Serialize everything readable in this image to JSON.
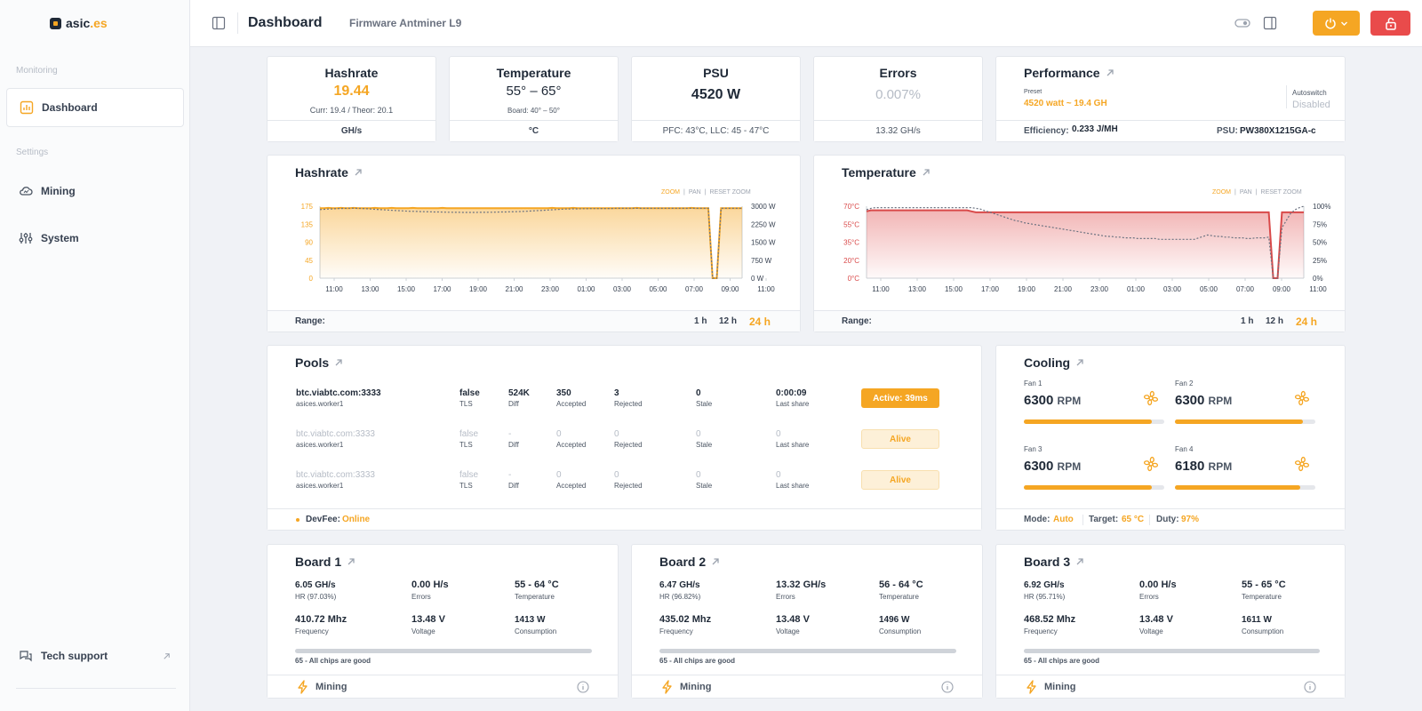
{
  "app": {
    "brand_a": "asic",
    "brand_b": ".es"
  },
  "sidebar": {
    "section_monitoring": "Monitoring",
    "section_settings": "Settings",
    "items": [
      {
        "label": "Dashboard",
        "icon": "chart-icon"
      },
      {
        "label": "Mining",
        "icon": "cloud-icon"
      },
      {
        "label": "System",
        "icon": "sliders-icon"
      }
    ],
    "support": "Tech support"
  },
  "header": {
    "title": "Dashboard",
    "firmware": "Firmware Antminer L9"
  },
  "stats": {
    "hashrate": {
      "title": "Hashrate",
      "value": "19.44",
      "sub": "Curr: 19.4 / Theor: 20.1",
      "unit": "GH/s"
    },
    "temperature": {
      "title": "Temperature",
      "value": "55° – 65°",
      "sub": "Board: 40° – 50°",
      "unit": "°C"
    },
    "psu": {
      "title": "PSU",
      "value": "4520 W",
      "foot": "PFC: 43°C, LLC: 45 - 47°C"
    },
    "errors": {
      "title": "Errors",
      "value": "0.007%",
      "foot": "13.32 GH/s"
    },
    "performance": {
      "title": "Performance",
      "preset_label": "Preset",
      "preset": "4520 watt ~ 19.4 GH",
      "autoswitch_label": "Autoswitch",
      "autoswitch": "Disabled",
      "eff_label": "Efficiency:",
      "eff": "0.233 J/MH",
      "psu_label": "PSU:",
      "psu": "PW380X1215GA-c"
    }
  },
  "chart_controls": {
    "zoom": "ZOOM",
    "pan": "PAN",
    "reset": "RESET ZOOM",
    "range": "Range:",
    "r1": "1 h",
    "r12": "12 h",
    "r24": "24 h"
  },
  "chart_data": [
    {
      "type": "line",
      "title": "Hashrate",
      "x_ticks": [
        "11:00",
        "13:00",
        "15:00",
        "17:00",
        "19:00",
        "21:00",
        "23:00",
        "01:00",
        "03:00",
        "05:00",
        "07:00",
        "09:00",
        "11:00"
      ],
      "y_ticks": [
        "175",
        "135",
        "90",
        "45",
        "0"
      ],
      "y2_ticks": [
        "3000 W",
        "2250 W",
        "1500 W",
        "750 W",
        "0 W"
      ],
      "ylim": [
        0,
        175
      ],
      "y2lim": [
        0,
        3000
      ],
      "series": [
        {
          "axis": "left",
          "color": "#f5a623",
          "values": [
            170,
            170,
            171,
            170,
            170,
            171,
            170,
            170,
            171,
            170,
            170,
            170,
            170,
            171,
            170,
            170,
            170,
            171,
            170,
            170,
            170,
            170,
            171,
            170,
            170,
            170,
            170,
            170,
            170,
            171,
            170,
            170,
            170,
            170,
            170,
            170,
            170,
            170,
            170,
            170,
            170,
            170,
            170,
            170,
            170,
            170,
            170,
            170,
            170,
            170,
            170,
            170,
            170,
            170,
            170,
            171,
            170,
            170,
            170,
            170,
            171,
            170,
            170,
            170,
            170,
            170,
            170,
            170,
            170,
            170,
            170,
            170,
            170,
            170,
            170,
            171,
            170,
            170,
            170,
            170,
            170,
            170,
            170,
            170,
            170,
            170,
            170,
            170,
            171,
            170,
            170,
            170,
            170,
            0,
            0,
            170,
            170,
            170,
            170,
            170,
            170
          ]
        },
        {
          "axis": "right",
          "color": "#6b7280",
          "values": [
            2860,
            2870,
            2880,
            2890,
            2900,
            2905,
            2910,
            2915,
            2915,
            2910,
            2905,
            2895,
            2885,
            2870,
            2860,
            2850,
            2840,
            2830,
            2820,
            2810,
            2800,
            2790,
            2785,
            2780,
            2775,
            2770,
            2765,
            2760,
            2760,
            2755,
            2750,
            2750,
            2745,
            2745,
            2740,
            2740,
            2740,
            2740,
            2745,
            2745,
            2750,
            2750,
            2755,
            2760,
            2760,
            2765,
            2770,
            2775,
            2780,
            2790,
            2800,
            2810,
            2820,
            2830,
            2840,
            2850,
            2860,
            2870,
            2880,
            2885,
            2890,
            2890,
            2895,
            2895,
            2900,
            2900,
            2900,
            2905,
            2905,
            2905,
            2910,
            2910,
            2910,
            2910,
            2910,
            2910,
            2910,
            2910,
            2910,
            2910,
            2910,
            2910,
            2910,
            2910,
            2910,
            2910,
            2910,
            2910,
            2910,
            2910,
            2910,
            2910,
            2910,
            0,
            0,
            2910,
            2910,
            2910,
            2910,
            2910,
            2910
          ]
        }
      ]
    },
    {
      "type": "line",
      "title": "Temperature",
      "x_ticks": [
        "11:00",
        "13:00",
        "15:00",
        "17:00",
        "19:00",
        "21:00",
        "23:00",
        "01:00",
        "03:00",
        "05:00",
        "07:00",
        "09:00",
        "11:00"
      ],
      "y_ticks": [
        "70°C",
        "55°C",
        "35°C",
        "20°C",
        "0°C"
      ],
      "y2_ticks": [
        "100%",
        "75%",
        "50%",
        "25%",
        "0%"
      ],
      "ylim": [
        0,
        70
      ],
      "y2lim": [
        0,
        100
      ],
      "series": [
        {
          "axis": "left",
          "color": "#d94a4a",
          "values": [
            65,
            66,
            66,
            66,
            66,
            66,
            66,
            66,
            66,
            66,
            66,
            66,
            66,
            66,
            66,
            66,
            66,
            66,
            66,
            66,
            66,
            66,
            66,
            66,
            65,
            64,
            64,
            64,
            64,
            64,
            64,
            64,
            64,
            64,
            64,
            64,
            64,
            64,
            64,
            64,
            64,
            64,
            64,
            64,
            64,
            64,
            64,
            64,
            64,
            64,
            64,
            64,
            64,
            64,
            64,
            64,
            64,
            64,
            64,
            64,
            64,
            64,
            64,
            64,
            64,
            64,
            64,
            64,
            64,
            64,
            64,
            64,
            64,
            64,
            64,
            64,
            64,
            64,
            64,
            64,
            64,
            64,
            64,
            64,
            64,
            64,
            64,
            64,
            64,
            64,
            64,
            64,
            64,
            0,
            0,
            64,
            64,
            64,
            64,
            64,
            64
          ]
        },
        {
          "axis": "right",
          "color": "#6b7280",
          "values": [
            95,
            97,
            98,
            98,
            98,
            98,
            98,
            98,
            98,
            98,
            98,
            98,
            98,
            98,
            98,
            98,
            98,
            98,
            98,
            98,
            98,
            98,
            98,
            98,
            98,
            97,
            96,
            94,
            92,
            90,
            88,
            86,
            84,
            82,
            80,
            79,
            77,
            76,
            75,
            74,
            73,
            72,
            71,
            70,
            69,
            68,
            67,
            66,
            65,
            64,
            63,
            62,
            61,
            60,
            59,
            58,
            58,
            57,
            57,
            56,
            56,
            56,
            55,
            55,
            55,
            55,
            55,
            54,
            54,
            54,
            54,
            54,
            54,
            54,
            54,
            54,
            56,
            58,
            60,
            59,
            58,
            58,
            57,
            57,
            56,
            56,
            56,
            55,
            55,
            56,
            56,
            56,
            57,
            0,
            0,
            70,
            80,
            90,
            95,
            98,
            100
          ]
        }
      ]
    }
  ],
  "pools": {
    "title": "Pools",
    "labels": {
      "tls": "TLS",
      "diff": "Diff",
      "accepted": "Accepted",
      "rejected": "Rejected",
      "stale": "Stale",
      "last": "Last share"
    },
    "rows": [
      {
        "url": "btc.viabtc.com:3333",
        "worker": "asices.worker1",
        "tls": "false",
        "diff": "524K",
        "accepted": "350",
        "rejected": "3",
        "stale": "0",
        "last": "0:00:09",
        "status": "Active: 39ms"
      },
      {
        "url": "btc.viabtc.com:3333",
        "worker": "asices.worker1",
        "tls": "false",
        "diff": "-",
        "accepted": "0",
        "rejected": "0",
        "stale": "0",
        "last": "0",
        "status": "Alive"
      },
      {
        "url": "btc.viabtc.com:3333",
        "worker": "asices.worker1",
        "tls": "false",
        "diff": "-",
        "accepted": "0",
        "rejected": "0",
        "stale": "0",
        "last": "0",
        "status": "Alive"
      }
    ],
    "devfee_label": "DevFee:",
    "devfee": "Online"
  },
  "cooling": {
    "title": "Cooling",
    "unit": "RPM",
    "fans": [
      {
        "label": "Fan 1",
        "rpm": "6300",
        "fill": 0.91
      },
      {
        "label": "Fan 2",
        "rpm": "6300",
        "fill": 0.91
      },
      {
        "label": "Fan 3",
        "rpm": "6300",
        "fill": 0.91
      },
      {
        "label": "Fan 4",
        "rpm": "6180",
        "fill": 0.89
      }
    ],
    "mode_label": "Mode:",
    "mode": "Auto",
    "target_label": "Target:",
    "target": "65 °C",
    "duty_label": "Duty:",
    "duty": "97%"
  },
  "board_labels": {
    "freq": "Frequency",
    "volt": "Voltage",
    "cons": "Consumption",
    "err": "Errors",
    "temp": "Temperature",
    "state": "Mining"
  },
  "boards": [
    {
      "title": "Board 1",
      "hr": "6.05 GH/s",
      "hr_label": "HR (97.03%)",
      "errors": "0.00 H/s",
      "temp": "55 - 64 °C",
      "freq": "410.72 Mhz",
      "volt": "13.48 V",
      "cons": "1413 W",
      "chips": "65 - All chips are good"
    },
    {
      "title": "Board 2",
      "hr": "6.47 GH/s",
      "hr_label": "HR (96.82%)",
      "errors": "13.32 GH/s",
      "temp": "56 - 64 °C",
      "freq": "435.02 Mhz",
      "volt": "13.48 V",
      "cons": "1496 W",
      "chips": "65 - All chips are good"
    },
    {
      "title": "Board 3",
      "hr": "6.92 GH/s",
      "hr_label": "HR (95.71%)",
      "errors": "0.00 H/s",
      "temp": "55 - 65 °C",
      "freq": "468.52 Mhz",
      "volt": "13.48 V",
      "cons": "1611 W",
      "chips": "65 - All chips are good"
    }
  ],
  "colors": {
    "accent": "#f5a623",
    "danger": "#e94b4b",
    "temp_line": "#d94a4a"
  }
}
